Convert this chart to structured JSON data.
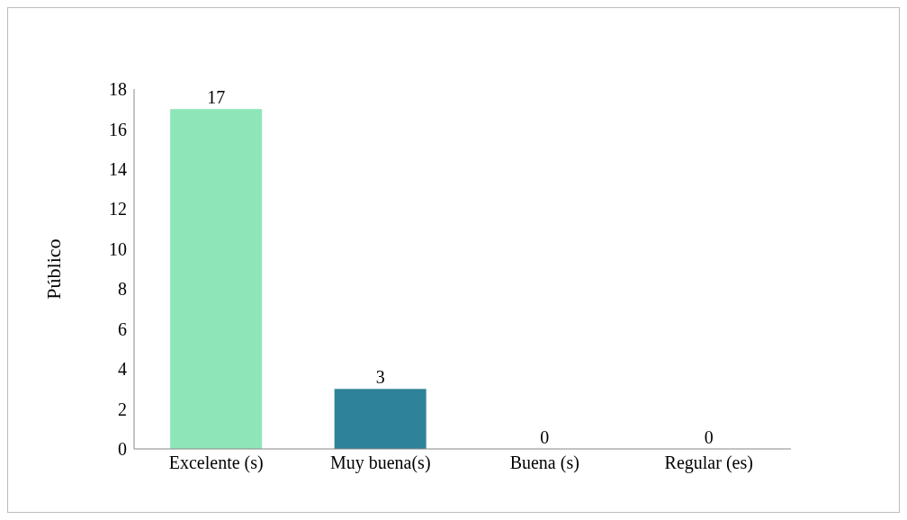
{
  "chart_data": {
    "type": "bar",
    "ylabel": "Público",
    "categories": [
      "Excelente (s)",
      "Muy buena(s)",
      "Buena (s)",
      "Regular (es)"
    ],
    "values": [
      17,
      3,
      0,
      0
    ],
    "colors": [
      "#8ee6b8",
      "#2e8299",
      "#4a0000",
      "#7b5a40"
    ],
    "ylim": [
      0,
      18
    ],
    "yticks": [
      0,
      2,
      4,
      6,
      8,
      10,
      12,
      14,
      16,
      18
    ],
    "grid": false,
    "data_labels": true
  }
}
